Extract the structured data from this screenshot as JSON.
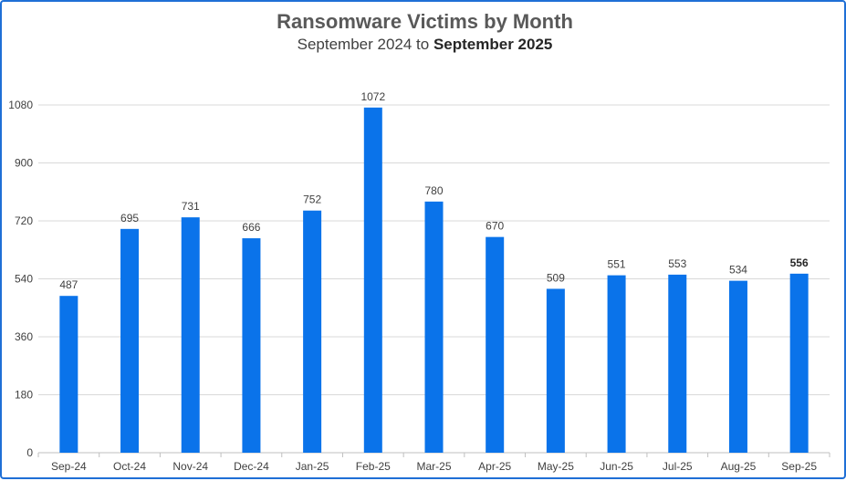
{
  "title": "Ransomware Victims by Month",
  "subtitle": {
    "prefix": "September 2024 to ",
    "emphasis": "September 2025"
  },
  "colors": {
    "bar": "#0a73ea",
    "grid": "#d9d9d9",
    "border": "#1f6fd6"
  },
  "chart_data": {
    "type": "bar",
    "title": "Ransomware Victims by Month",
    "subtitle": "September 2024 to September 2025",
    "xlabel": "",
    "ylabel": "",
    "categories": [
      "Sep-24",
      "Oct-24",
      "Nov-24",
      "Dec-24",
      "Jan-25",
      "Feb-25",
      "Mar-25",
      "Apr-25",
      "May-25",
      "Jun-25",
      "Jul-25",
      "Aug-25",
      "Sep-25"
    ],
    "values": [
      487,
      695,
      731,
      666,
      752,
      1072,
      780,
      670,
      509,
      551,
      553,
      534,
      556
    ],
    "ylim": [
      0,
      1080
    ],
    "yticks": [
      0,
      180,
      360,
      540,
      720,
      900,
      1080
    ],
    "grid": true,
    "legend": "none",
    "data_labels": true,
    "bold_label_categories": [
      "Sep-25"
    ]
  }
}
